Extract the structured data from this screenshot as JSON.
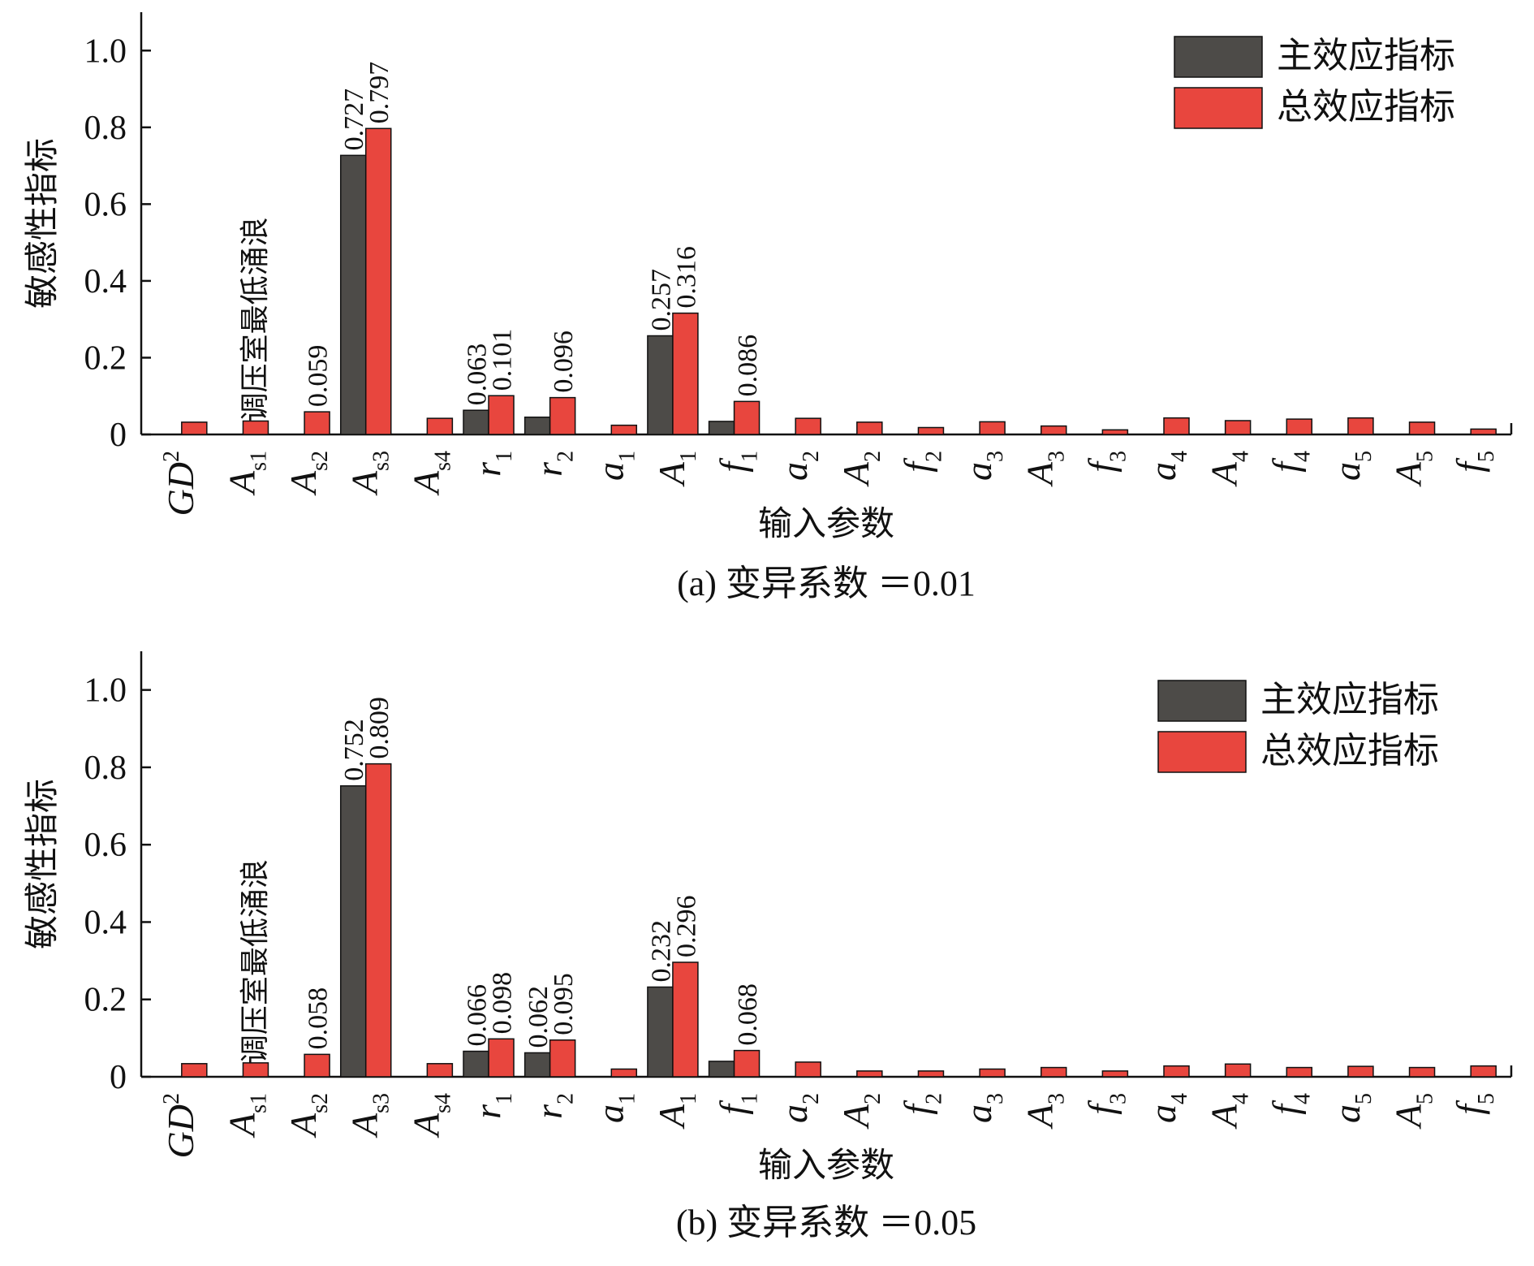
{
  "legend": {
    "main_label": "主效应指标",
    "total_label": "总效应指标"
  },
  "colors": {
    "main": "#4d4b48",
    "total": "#e8463e",
    "axis": "#111111"
  },
  "chart_data": [
    {
      "type": "bar",
      "caption": "(a)  变异系数 ＝0.01",
      "xlabel": "输入参数",
      "ylabel": "敏感性指标",
      "ylim": [
        0,
        1.1
      ],
      "yticks": [
        0,
        0.2,
        0.4,
        0.6,
        0.8,
        1.0
      ],
      "ytick_labels": [
        "0",
        "0.2",
        "0.4",
        "0.6",
        "0.8",
        "1.0"
      ],
      "legend_position": "top-right",
      "annotation": "调压室最低涌浪",
      "categories": [
        {
          "base": "GD",
          "sup": "2",
          "sub": ""
        },
        {
          "base": "A",
          "sup": "",
          "sub": "s1"
        },
        {
          "base": "A",
          "sup": "",
          "sub": "s2"
        },
        {
          "base": "A",
          "sup": "",
          "sub": "s3"
        },
        {
          "base": "A",
          "sup": "",
          "sub": "s4"
        },
        {
          "base": "r",
          "sup": "",
          "sub": "1"
        },
        {
          "base": "r",
          "sup": "",
          "sub": "2"
        },
        {
          "base": "a",
          "sup": "",
          "sub": "1"
        },
        {
          "base": "A",
          "sup": "",
          "sub": "1"
        },
        {
          "base": "f",
          "sup": "",
          "sub": "1"
        },
        {
          "base": "a",
          "sup": "",
          "sub": "2"
        },
        {
          "base": "A",
          "sup": "",
          "sub": "2"
        },
        {
          "base": "f",
          "sup": "",
          "sub": "2"
        },
        {
          "base": "a",
          "sup": "",
          "sub": "3"
        },
        {
          "base": "A",
          "sup": "",
          "sub": "3"
        },
        {
          "base": "f",
          "sup": "",
          "sub": "3"
        },
        {
          "base": "a",
          "sup": "",
          "sub": "4"
        },
        {
          "base": "A",
          "sup": "",
          "sub": "4"
        },
        {
          "base": "f",
          "sup": "",
          "sub": "4"
        },
        {
          "base": "a",
          "sup": "",
          "sub": "5"
        },
        {
          "base": "A",
          "sup": "",
          "sub": "5"
        },
        {
          "base": "f",
          "sup": "",
          "sub": "5"
        }
      ],
      "series": [
        {
          "name": "主效应指标",
          "values": [
            0,
            0,
            0,
            0.727,
            0,
            0.063,
            0.045,
            0,
            0.257,
            0.034,
            0,
            0,
            0,
            0,
            0,
            0,
            0,
            0,
            0,
            0,
            0,
            0
          ]
        },
        {
          "name": "总效应指标",
          "values": [
            0.032,
            0.035,
            0.059,
            0.797,
            0.042,
            0.101,
            0.096,
            0.024,
            0.316,
            0.086,
            0.042,
            0.032,
            0.018,
            0.033,
            0.022,
            0.012,
            0.043,
            0.036,
            0.04,
            0.043,
            0.032,
            0.014
          ]
        }
      ],
      "data_labels": [
        {
          "index": 2,
          "series": 1,
          "text": "0.059"
        },
        {
          "index": 3,
          "series": 0,
          "text": "0.727"
        },
        {
          "index": 3,
          "series": 1,
          "text": "0.797"
        },
        {
          "index": 5,
          "series": 0,
          "text": "0.063"
        },
        {
          "index": 5,
          "series": 1,
          "text": "0.101"
        },
        {
          "index": 6,
          "series": 1,
          "text": "0.096"
        },
        {
          "index": 8,
          "series": 0,
          "text": "0.257"
        },
        {
          "index": 8,
          "series": 1,
          "text": "0.316"
        },
        {
          "index": 9,
          "series": 1,
          "text": "0.086"
        }
      ]
    },
    {
      "type": "bar",
      "caption": "(b)  变异系数 ＝0.05",
      "xlabel": "输入参数",
      "ylabel": "敏感性指标",
      "ylim": [
        0,
        1.1
      ],
      "yticks": [
        0,
        0.2,
        0.4,
        0.6,
        0.8,
        1.0
      ],
      "ytick_labels": [
        "0",
        "0.2",
        "0.4",
        "0.6",
        "0.8",
        "1.0"
      ],
      "legend_position": "top-right",
      "annotation": "调压室最低涌浪",
      "categories": [
        {
          "base": "GD",
          "sup": "2",
          "sub": ""
        },
        {
          "base": "A",
          "sup": "",
          "sub": "s1"
        },
        {
          "base": "A",
          "sup": "",
          "sub": "s2"
        },
        {
          "base": "A",
          "sup": "",
          "sub": "s3"
        },
        {
          "base": "A",
          "sup": "",
          "sub": "s4"
        },
        {
          "base": "r",
          "sup": "",
          "sub": "1"
        },
        {
          "base": "r",
          "sup": "",
          "sub": "2"
        },
        {
          "base": "a",
          "sup": "",
          "sub": "1"
        },
        {
          "base": "A",
          "sup": "",
          "sub": "1"
        },
        {
          "base": "f",
          "sup": "",
          "sub": "1"
        },
        {
          "base": "a",
          "sup": "",
          "sub": "2"
        },
        {
          "base": "A",
          "sup": "",
          "sub": "2"
        },
        {
          "base": "f",
          "sup": "",
          "sub": "2"
        },
        {
          "base": "a",
          "sup": "",
          "sub": "3"
        },
        {
          "base": "A",
          "sup": "",
          "sub": "3"
        },
        {
          "base": "f",
          "sup": "",
          "sub": "3"
        },
        {
          "base": "a",
          "sup": "",
          "sub": "4"
        },
        {
          "base": "A",
          "sup": "",
          "sub": "4"
        },
        {
          "base": "f",
          "sup": "",
          "sub": "4"
        },
        {
          "base": "a",
          "sup": "",
          "sub": "5"
        },
        {
          "base": "A",
          "sup": "",
          "sub": "5"
        },
        {
          "base": "f",
          "sup": "",
          "sub": "5"
        }
      ],
      "series": [
        {
          "name": "主效应指标",
          "values": [
            0,
            0,
            0,
            0.752,
            0,
            0.066,
            0.062,
            0,
            0.232,
            0.04,
            0,
            0,
            0,
            0,
            0,
            0,
            0,
            0,
            0,
            0,
            0,
            0
          ]
        },
        {
          "name": "总效应指标",
          "values": [
            0.034,
            0.036,
            0.058,
            0.809,
            0.034,
            0.098,
            0.095,
            0.02,
            0.296,
            0.068,
            0.038,
            0.015,
            0.015,
            0.02,
            0.024,
            0.015,
            0.028,
            0.033,
            0.024,
            0.027,
            0.024,
            0.028
          ]
        }
      ],
      "data_labels": [
        {
          "index": 2,
          "series": 1,
          "text": "0.058"
        },
        {
          "index": 3,
          "series": 0,
          "text": "0.752"
        },
        {
          "index": 3,
          "series": 1,
          "text": "0.809"
        },
        {
          "index": 5,
          "series": 0,
          "text": "0.066"
        },
        {
          "index": 5,
          "series": 1,
          "text": "0.098"
        },
        {
          "index": 6,
          "series": 0,
          "text": "0.062"
        },
        {
          "index": 6,
          "series": 1,
          "text": "0.095"
        },
        {
          "index": 8,
          "series": 0,
          "text": "0.232"
        },
        {
          "index": 8,
          "series": 1,
          "text": "0.296"
        },
        {
          "index": 9,
          "series": 1,
          "text": "0.068"
        }
      ]
    }
  ]
}
